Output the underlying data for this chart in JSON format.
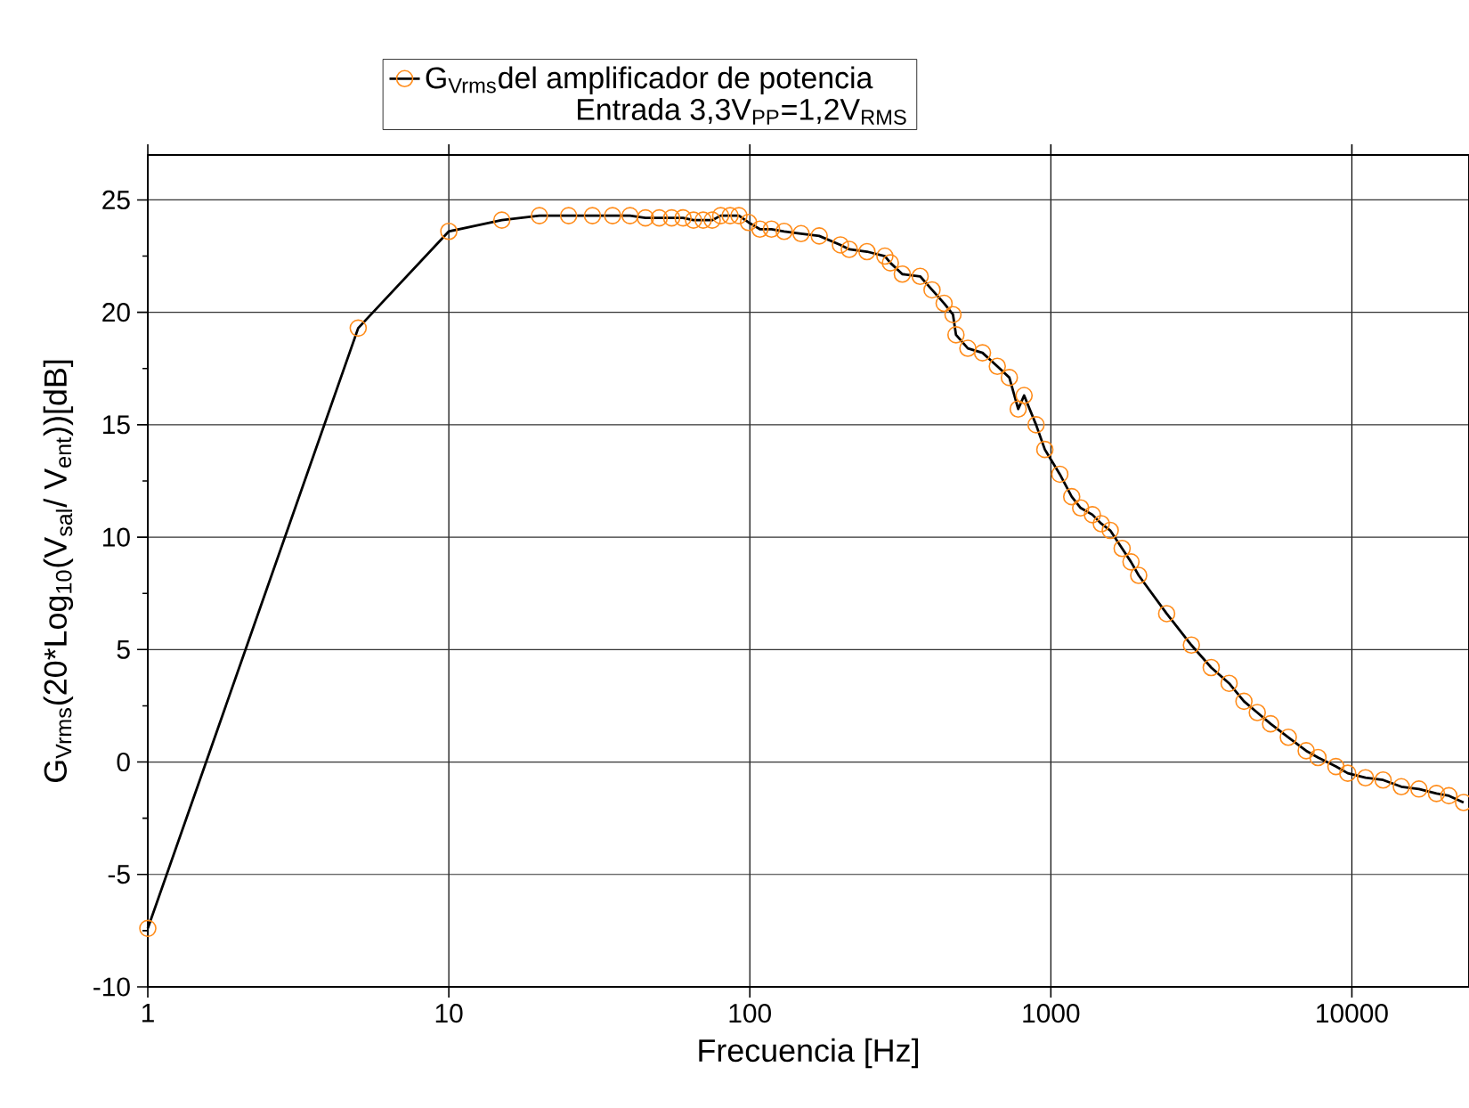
{
  "chart_data": {
    "type": "line",
    "xlabel": "Frecuencia [Hz]",
    "ylabel": "G$_{Vrms}$(20*Log$_{10}$(V$_{sal}$/ V$_{ent}$))[dB]",
    "legend_title": "Entrada 3,3V$_{PP}$=1,2V$_{RMS}$",
    "log": "x",
    "grid": true,
    "legend": "top",
    "marker": "circle",
    "line_style": "solid",
    "xlim": [
      1,
      24500
    ],
    "ylim": [
      -10,
      27
    ],
    "xticks": [
      1,
      10,
      100,
      1000,
      10000
    ],
    "yticks": [
      -10,
      -5,
      0,
      5,
      10,
      15,
      20,
      25
    ],
    "series": [
      {
        "name": "G$_{Vrms}$del amplificador de potencia",
        "color": "#ff8c1a",
        "x": [
          1,
          5,
          10,
          15,
          20,
          25,
          30,
          35,
          40,
          45,
          50,
          55,
          60,
          65,
          70,
          75,
          80,
          86,
          92,
          99,
          108,
          118,
          130,
          148,
          170,
          200,
          214,
          245,
          281,
          293,
          321,
          368,
          403,
          442,
          473,
          484,
          530,
          593,
          664,
          728,
          779,
          815,
          893,
          955,
          1071,
          1173,
          1256,
          1374,
          1471,
          1575,
          1725,
          1846,
          1958,
          2425,
          2930,
          3410,
          3910,
          4380,
          4850,
          5370,
          6150,
          7050,
          7720,
          8850,
          9690,
          11100,
          12700,
          14600,
          16700,
          19100,
          21000,
          23500
        ],
        "values": [
          -7.4,
          19.3,
          23.6,
          24.1,
          24.3,
          24.3,
          24.3,
          24.3,
          24.3,
          24.2,
          24.2,
          24.2,
          24.2,
          24.1,
          24.1,
          24.1,
          24.3,
          24.3,
          24.3,
          24.0,
          23.7,
          23.7,
          23.6,
          23.5,
          23.4,
          23.0,
          22.8,
          22.7,
          22.5,
          22.2,
          21.7,
          21.6,
          21.0,
          20.4,
          19.9,
          19.0,
          18.4,
          18.2,
          17.6,
          17.1,
          15.7,
          16.3,
          15.0,
          13.9,
          12.8,
          11.8,
          11.3,
          11.0,
          10.6,
          10.3,
          9.5,
          8.9,
          8.3,
          6.6,
          5.2,
          4.2,
          3.5,
          2.7,
          2.2,
          1.7,
          1.1,
          0.5,
          0.2,
          -0.2,
          -0.5,
          -0.7,
          -0.8,
          -1.1,
          -1.2,
          -1.4,
          -1.5,
          -1.8
        ]
      }
    ]
  }
}
